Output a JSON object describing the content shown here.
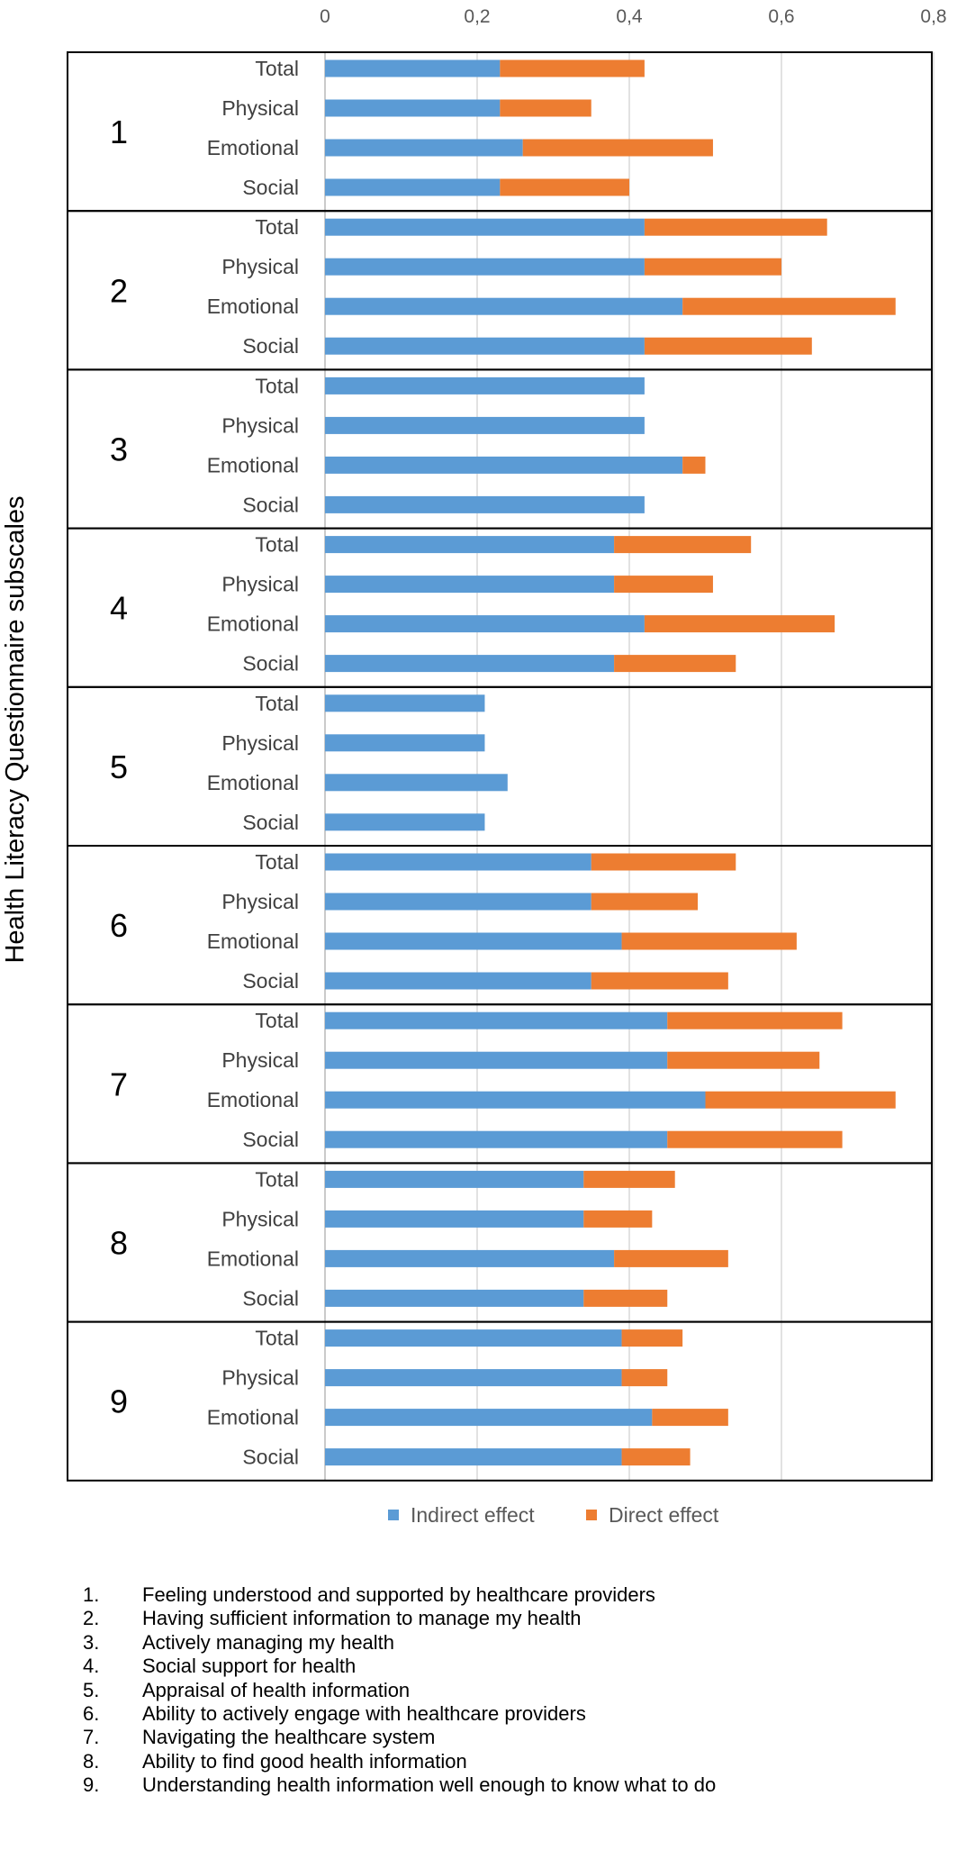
{
  "chart_data": {
    "type": "bar",
    "orientation": "horizontal",
    "stacked": true,
    "ylabel": "Health Literacy Questionnaire subscales",
    "xlim": [
      0,
      0.8
    ],
    "x_ticks": [
      "0",
      "0,2",
      "0,4",
      "0,6",
      "0,8"
    ],
    "x_tick_values": [
      0,
      0.2,
      0.4,
      0.6,
      0.8
    ],
    "grid": "vertical",
    "legend_position": "bottom",
    "categories": [
      "Total",
      "Physical",
      "Emotional",
      "Social"
    ],
    "series_names": [
      "Indirect effect",
      "Direct effect"
    ],
    "colors": {
      "indirect": "#5B9BD5",
      "direct": "#ED7D31"
    },
    "groups": [
      {
        "label": "1",
        "indirect": [
          0.23,
          0.23,
          0.26,
          0.23
        ],
        "direct": [
          0.19,
          0.12,
          0.25,
          0.17
        ]
      },
      {
        "label": "2",
        "indirect": [
          0.42,
          0.42,
          0.47,
          0.42
        ],
        "direct": [
          0.24,
          0.18,
          0.28,
          0.22
        ]
      },
      {
        "label": "3",
        "indirect": [
          0.42,
          0.42,
          0.47,
          0.42
        ],
        "direct": [
          0.0,
          0.0,
          0.03,
          0.0
        ]
      },
      {
        "label": "4",
        "indirect": [
          0.38,
          0.38,
          0.42,
          0.38
        ],
        "direct": [
          0.18,
          0.13,
          0.25,
          0.16
        ]
      },
      {
        "label": "5",
        "indirect": [
          0.21,
          0.21,
          0.24,
          0.21
        ],
        "direct": [
          0.0,
          0.0,
          0.0,
          0.0
        ]
      },
      {
        "label": "6",
        "indirect": [
          0.35,
          0.35,
          0.39,
          0.35
        ],
        "direct": [
          0.19,
          0.14,
          0.23,
          0.18
        ]
      },
      {
        "label": "7",
        "indirect": [
          0.45,
          0.45,
          0.5,
          0.45
        ],
        "direct": [
          0.23,
          0.2,
          0.25,
          0.23
        ]
      },
      {
        "label": "8",
        "indirect": [
          0.34,
          0.34,
          0.38,
          0.34
        ],
        "direct": [
          0.12,
          0.09,
          0.15,
          0.11
        ]
      },
      {
        "label": "9",
        "indirect": [
          0.39,
          0.39,
          0.43,
          0.39
        ],
        "direct": [
          0.08,
          0.06,
          0.1,
          0.09
        ]
      }
    ]
  },
  "legend": {
    "indirect_label": "Indirect effect",
    "direct_label": "Direct effect"
  },
  "footnotes": [
    {
      "num": "1.",
      "text": "Feeling understood and supported by healthcare providers"
    },
    {
      "num": "2.",
      "text": "Having sufficient information to manage my health"
    },
    {
      "num": "3.",
      "text": "Actively managing my health"
    },
    {
      "num": "4.",
      "text": "Social support for health"
    },
    {
      "num": "5.",
      "text": "Appraisal of health information"
    },
    {
      "num": "6.",
      "text": "Ability to actively engage with healthcare providers"
    },
    {
      "num": "7.",
      "text": "Navigating the healthcare system"
    },
    {
      "num": "8.",
      "text": "Ability to find good health information"
    },
    {
      "num": "9.",
      "text": "Understanding health information well enough to know what to do"
    }
  ]
}
